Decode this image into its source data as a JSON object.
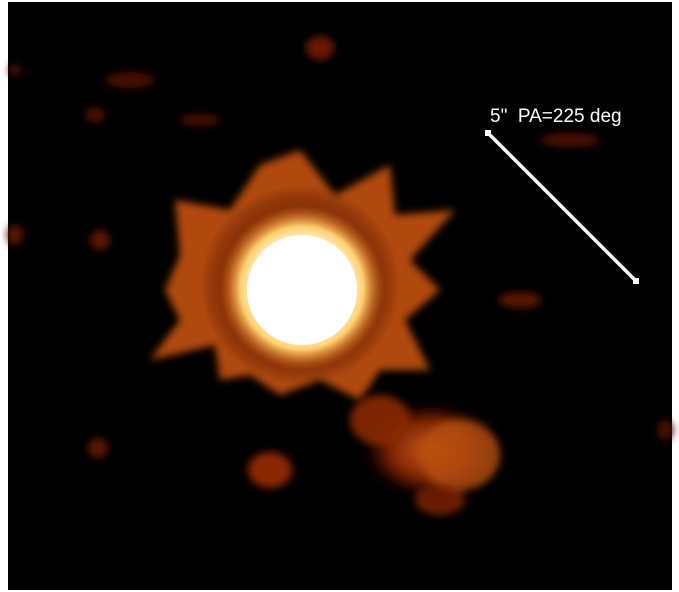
{
  "annotation": "5\"  PA=225 deg"
}
